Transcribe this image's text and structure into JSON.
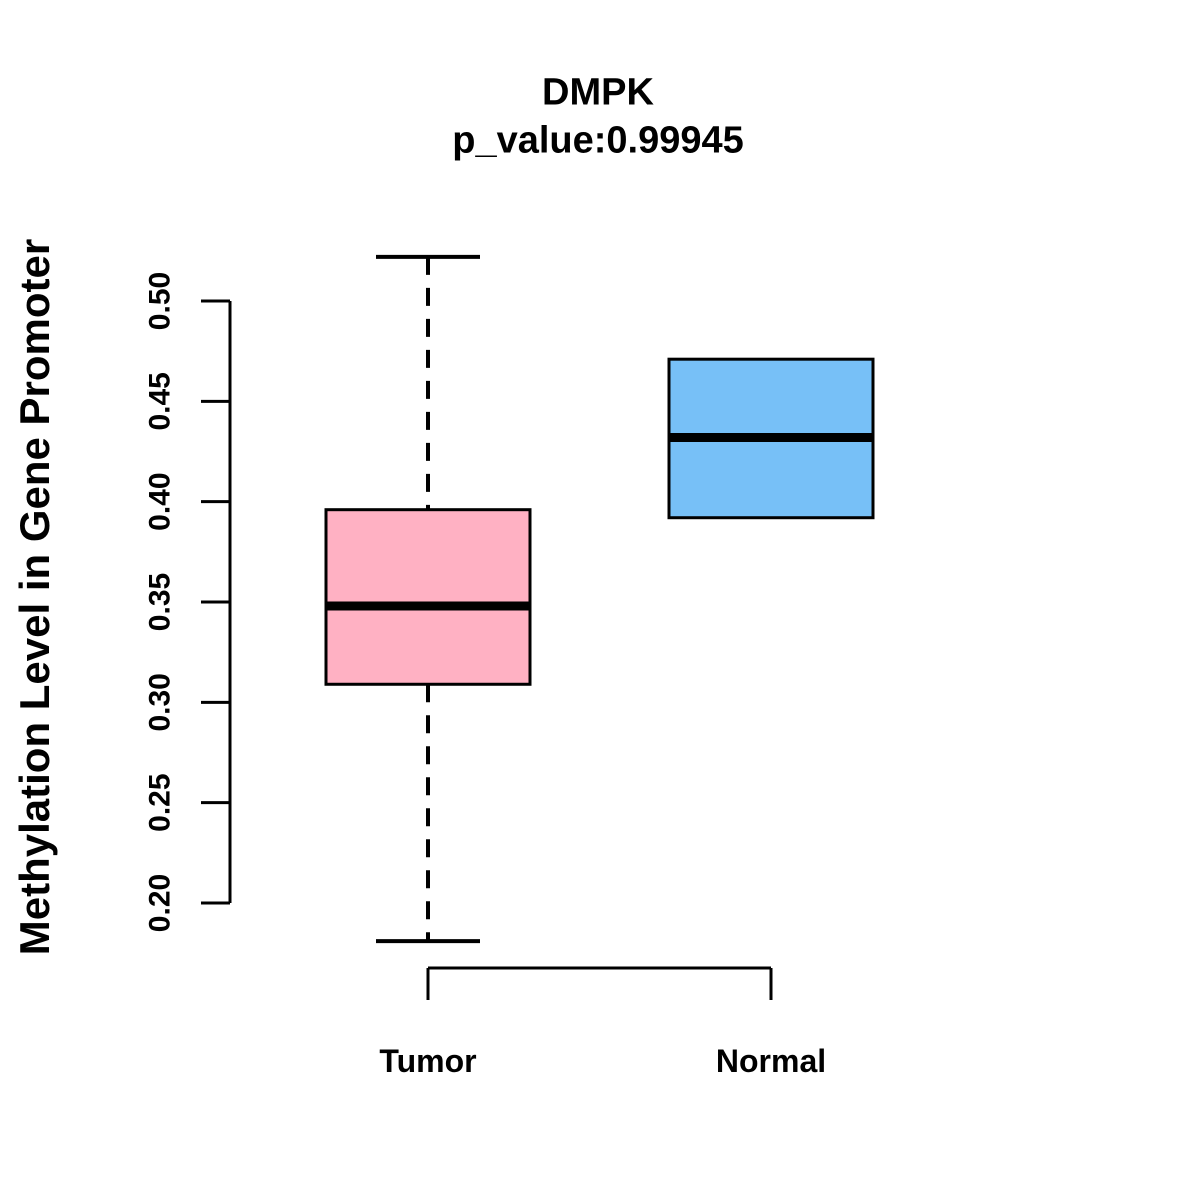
{
  "chart_data": {
    "type": "boxplot",
    "title": "DMPK",
    "subtitle": "p_value:0.99945",
    "ylabel": "Methylation Level in Gene Promoter",
    "xlabel": "",
    "categories": [
      "Tumor",
      "Normal"
    ],
    "y_ticks": [
      0.2,
      0.25,
      0.3,
      0.35,
      0.4,
      0.45,
      0.5
    ],
    "ylim": [
      0.18,
      0.525
    ],
    "grid": false,
    "legend": "none",
    "series": [
      {
        "name": "Tumor",
        "whisker_low": 0.181,
        "q1": 0.309,
        "median": 0.348,
        "q3": 0.396,
        "whisker_high": 0.522,
        "fill_color": "#FFB1C3"
      },
      {
        "name": "Normal",
        "whisker_low": 0.392,
        "q1": 0.392,
        "median": 0.432,
        "q3": 0.471,
        "whisker_high": 0.471,
        "fill_color": "#77C0F7"
      }
    ],
    "colors": {
      "tumor_fill": "#FFB1C3",
      "normal_fill": "#77C0F7",
      "line": "#000000",
      "background": "#FFFFFF"
    }
  }
}
